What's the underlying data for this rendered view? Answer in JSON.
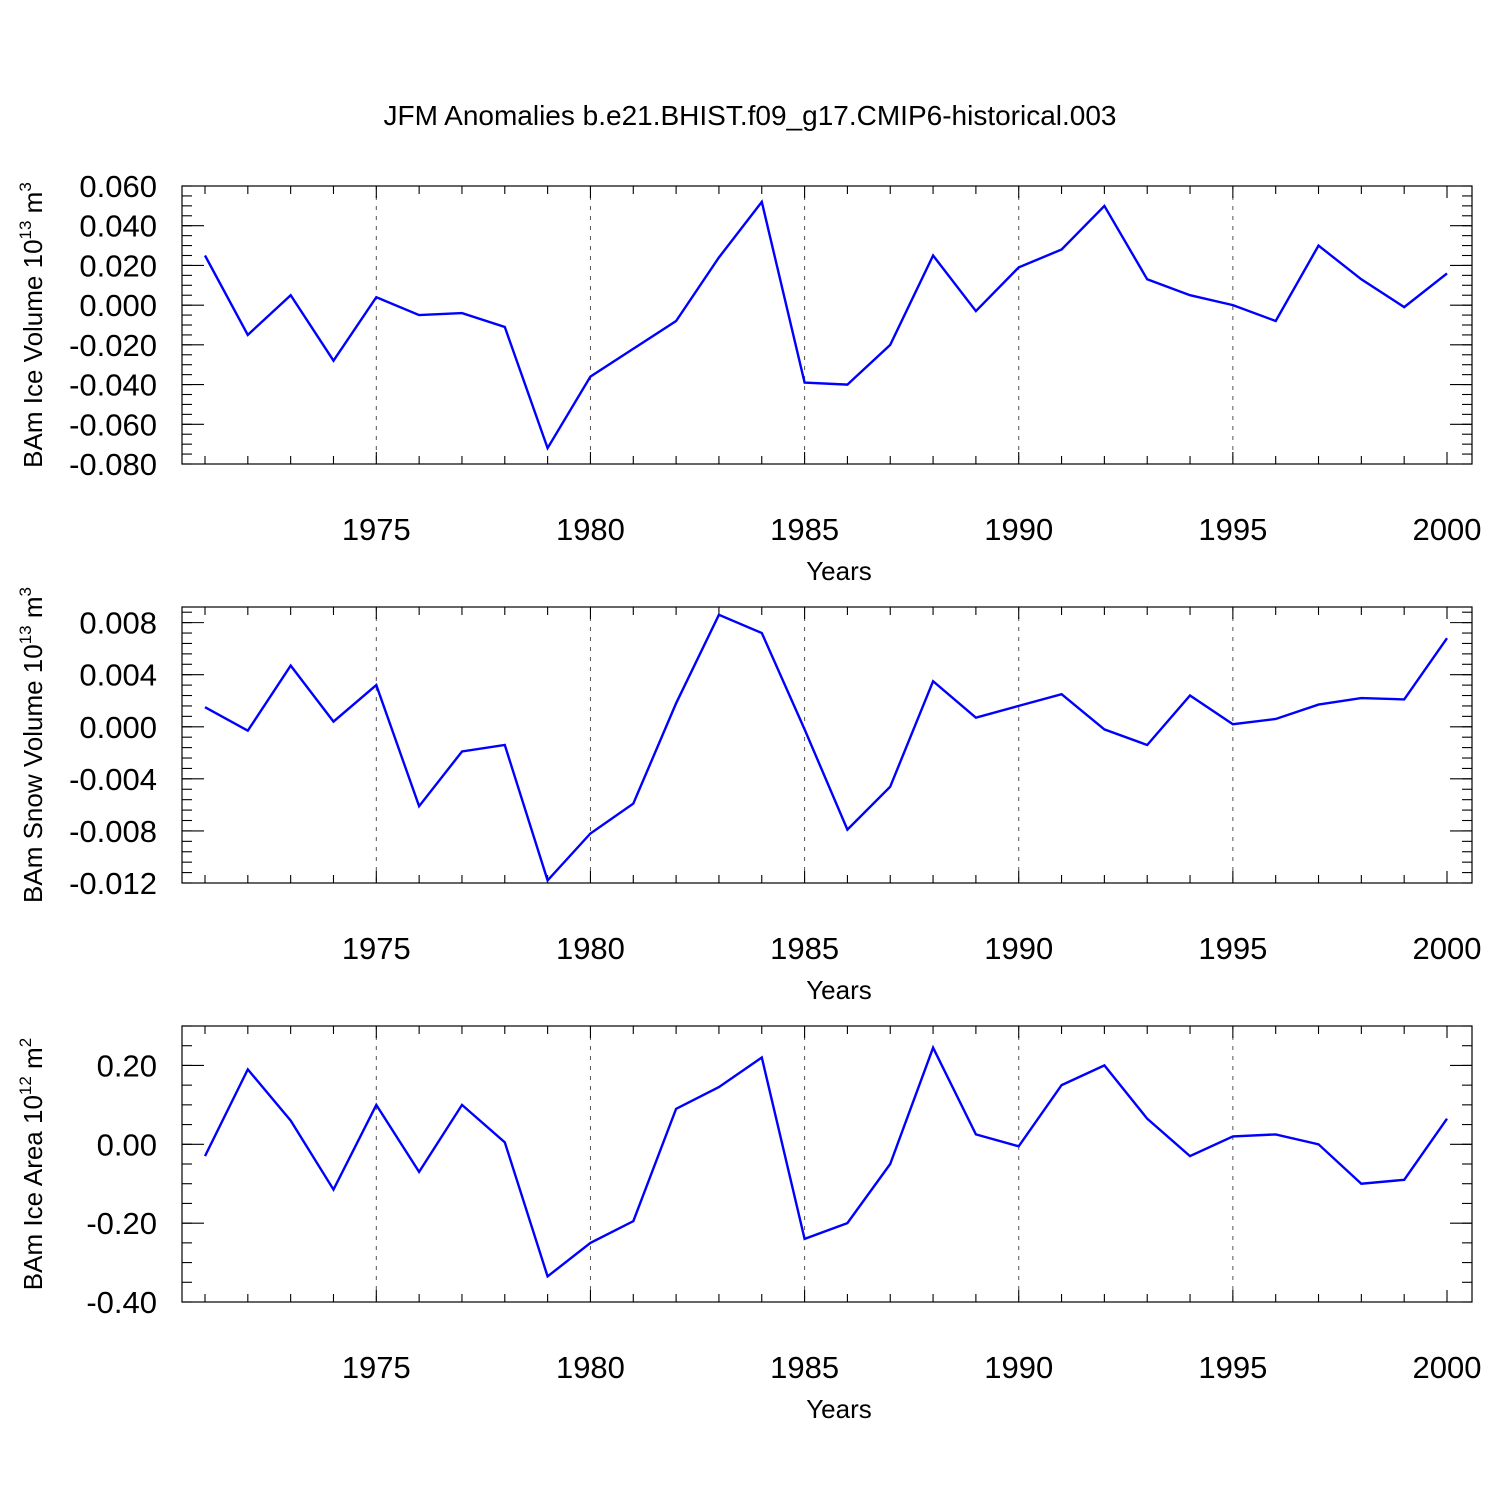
{
  "title": "JFM Anomalies b.e21.BHIST.f09_g17.CMIP6-historical.003",
  "colors": {
    "line": "#0000ff",
    "axes": "#000000",
    "grid": "#555555"
  },
  "chart_data": [
    {
      "type": "line",
      "ylabel": {
        "main": "BAm Ice Volume 10",
        "sup1": "13",
        "mid": " m",
        "sup2": "3"
      },
      "xlabel": "Years",
      "xlim": [
        1971,
        2000
      ],
      "ylim": [
        -0.08,
        0.06
      ],
      "xticks": [
        1975,
        1980,
        1985,
        1990,
        1995,
        2000
      ],
      "xtick_labels": [
        "1975",
        "1980",
        "1985",
        "1990",
        "1995",
        "2000"
      ],
      "yticks": [
        -0.08,
        -0.06,
        -0.04,
        -0.02,
        0.0,
        0.02,
        0.04,
        0.06
      ],
      "ytick_labels": [
        "-0.080",
        "-0.060",
        "-0.040",
        "-0.020",
        "0.000",
        "0.020",
        "0.040",
        "0.060"
      ],
      "yminor_step": 0.005,
      "grid_x": [
        1975,
        1980,
        1985,
        1990,
        1995
      ],
      "series": [
        {
          "name": "BAm Ice Volume",
          "x": [
            1971,
            1972,
            1973,
            1974,
            1975,
            1976,
            1977,
            1978,
            1979,
            1980,
            1981,
            1982,
            1983,
            1984,
            1985,
            1986,
            1987,
            1988,
            1989,
            1990,
            1991,
            1992,
            1993,
            1994,
            1995,
            1996,
            1997,
            1998,
            1999,
            2000
          ],
          "values": [
            0.025,
            -0.015,
            0.005,
            -0.028,
            0.004,
            -0.005,
            -0.004,
            -0.011,
            -0.072,
            -0.036,
            -0.022,
            -0.008,
            0.024,
            0.052,
            -0.039,
            -0.04,
            -0.02,
            0.025,
            -0.003,
            0.019,
            0.028,
            0.05,
            0.013,
            0.005,
            0.0,
            -0.008,
            0.03,
            0.013,
            -0.001,
            0.016
          ]
        }
      ]
    },
    {
      "type": "line",
      "ylabel": {
        "main": "BAm Snow Volume 10",
        "sup1": "13",
        "mid": " m",
        "sup2": "3"
      },
      "xlabel": "Years",
      "xlim": [
        1971,
        2000
      ],
      "ylim": [
        -0.012,
        0.0092
      ],
      "xticks": [
        1975,
        1980,
        1985,
        1990,
        1995,
        2000
      ],
      "xtick_labels": [
        "1975",
        "1980",
        "1985",
        "1990",
        "1995",
        "2000"
      ],
      "yticks": [
        -0.012,
        -0.008,
        -0.004,
        0.0,
        0.004,
        0.008
      ],
      "ytick_labels": [
        "-0.012",
        "-0.008",
        "-0.004",
        "0.000",
        "0.004",
        "0.008"
      ],
      "yminor_step": 0.0008,
      "grid_x": [
        1975,
        1980,
        1985,
        1990,
        1995
      ],
      "series": [
        {
          "name": "BAm Snow Volume",
          "x": [
            1971,
            1972,
            1973,
            1974,
            1975,
            1976,
            1977,
            1978,
            1979,
            1980,
            1981,
            1982,
            1983,
            1984,
            1985,
            1986,
            1987,
            1988,
            1989,
            1990,
            1991,
            1992,
            1993,
            1994,
            1995,
            1996,
            1997,
            1998,
            1999,
            2000
          ],
          "values": [
            0.0015,
            -0.0003,
            0.0047,
            0.0004,
            0.0032,
            -0.0061,
            -0.0019,
            -0.0014,
            -0.0118,
            -0.0082,
            -0.0059,
            0.0018,
            0.0086,
            0.0072,
            -0.0002,
            -0.0079,
            -0.0046,
            0.0035,
            0.0007,
            0.0016,
            0.0025,
            -0.0002,
            -0.0014,
            0.0024,
            0.0002,
            0.0006,
            0.0017,
            0.0022,
            0.0021,
            0.0068
          ]
        }
      ]
    },
    {
      "type": "line",
      "ylabel": {
        "main": "BAm Ice Area 10",
        "sup1": "12",
        "mid": " m",
        "sup2": "2"
      },
      "xlabel": "Years",
      "xlim": [
        1971,
        2000
      ],
      "ylim": [
        -0.4,
        0.3
      ],
      "xticks": [
        1975,
        1980,
        1985,
        1990,
        1995,
        2000
      ],
      "xtick_labels": [
        "1975",
        "1980",
        "1985",
        "1990",
        "1995",
        "2000"
      ],
      "yticks": [
        -0.4,
        -0.2,
        0.0,
        0.2
      ],
      "ytick_labels": [
        "-0.40",
        "-0.20",
        "0.00",
        "0.20"
      ],
      "yminor_step": 0.05,
      "grid_x": [
        1975,
        1980,
        1985,
        1990,
        1995
      ],
      "series": [
        {
          "name": "BAm Ice Area",
          "x": [
            1971,
            1972,
            1973,
            1974,
            1975,
            1976,
            1977,
            1978,
            1979,
            1980,
            1981,
            1982,
            1983,
            1984,
            1985,
            1986,
            1987,
            1988,
            1989,
            1990,
            1991,
            1992,
            1993,
            1994,
            1995,
            1996,
            1997,
            1998,
            1999,
            2000
          ],
          "values": [
            -0.03,
            0.19,
            0.06,
            -0.115,
            0.1,
            -0.07,
            0.1,
            0.005,
            -0.335,
            -0.25,
            -0.195,
            0.09,
            0.145,
            0.22,
            -0.24,
            -0.2,
            -0.05,
            0.245,
            0.025,
            -0.005,
            0.15,
            0.2,
            0.065,
            -0.03,
            0.02,
            0.025,
            0.0,
            -0.1,
            -0.09,
            0.065
          ]
        }
      ]
    }
  ]
}
